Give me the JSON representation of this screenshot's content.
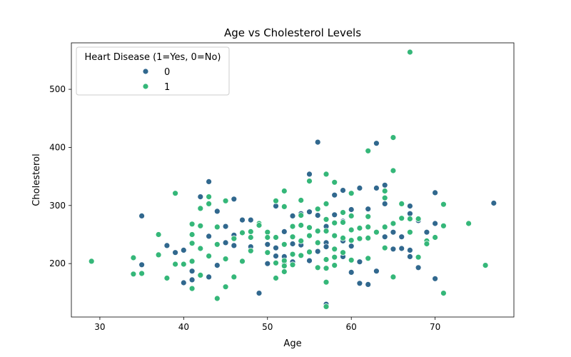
{
  "chart_data": {
    "type": "scatter",
    "title": "Age vs Cholesterol Levels",
    "xlabel": "Age",
    "ylabel": "Cholesterol",
    "xlim": [
      26.6,
      79.4
    ],
    "ylim": [
      108,
      580
    ],
    "xticks": [
      "30",
      "40",
      "50",
      "60",
      "70"
    ],
    "yticks": [
      "200",
      "300",
      "400",
      "500"
    ],
    "grid": false,
    "legend": {
      "title": "Heart Disease (1=Yes, 0=No)",
      "position": "top-left"
    },
    "series": [
      {
        "name": "0",
        "color": "#31688e",
        "points": [
          [
            35,
            282
          ],
          [
            35,
            198
          ],
          [
            38,
            231
          ],
          [
            39,
            219
          ],
          [
            40,
            167
          ],
          [
            40,
            223
          ],
          [
            41,
            172
          ],
          [
            41,
            187
          ],
          [
            42,
            315
          ],
          [
            43,
            341
          ],
          [
            43,
            177
          ],
          [
            43,
            247
          ],
          [
            44,
            290
          ],
          [
            44,
            197
          ],
          [
            45,
            264
          ],
          [
            45,
            236
          ],
          [
            46,
            311
          ],
          [
            46,
            231
          ],
          [
            46,
            249
          ],
          [
            47,
            275
          ],
          [
            48,
            275
          ],
          [
            48,
            229
          ],
          [
            49,
            266
          ],
          [
            49,
            149
          ],
          [
            50,
            200
          ],
          [
            50,
            233
          ],
          [
            51,
            299
          ],
          [
            51,
            227
          ],
          [
            51,
            213
          ],
          [
            52,
            255
          ],
          [
            52,
            199
          ],
          [
            52,
            212
          ],
          [
            53,
            282
          ],
          [
            53,
            203
          ],
          [
            53,
            234
          ],
          [
            54,
            286
          ],
          [
            54,
            232
          ],
          [
            54,
            214
          ],
          [
            55,
            289
          ],
          [
            55,
            354
          ],
          [
            55,
            205
          ],
          [
            56,
            409
          ],
          [
            56,
            283
          ],
          [
            56,
            236
          ],
          [
            56,
            221
          ],
          [
            57,
            303
          ],
          [
            57,
            236
          ],
          [
            57,
            130
          ],
          [
            57,
            229
          ],
          [
            57,
            264
          ],
          [
            58,
            318
          ],
          [
            58,
            284
          ],
          [
            58,
            224
          ],
          [
            58,
            248
          ],
          [
            59,
            326
          ],
          [
            59,
            273
          ],
          [
            59,
            239
          ],
          [
            59,
            212
          ],
          [
            60,
            293
          ],
          [
            60,
            230
          ],
          [
            60,
            258
          ],
          [
            60,
            185
          ],
          [
            61,
            330
          ],
          [
            61,
            243
          ],
          [
            61,
            203
          ],
          [
            61,
            166
          ],
          [
            62,
            294
          ],
          [
            62,
            263
          ],
          [
            62,
            281
          ],
          [
            62,
            164
          ],
          [
            63,
            407
          ],
          [
            63,
            330
          ],
          [
            63,
            254
          ],
          [
            63,
            187
          ],
          [
            64,
            335
          ],
          [
            64,
            303
          ],
          [
            64,
            263
          ],
          [
            64,
            246
          ],
          [
            65,
            254
          ],
          [
            65,
            225
          ],
          [
            66,
            226
          ],
          [
            66,
            246
          ],
          [
            67,
            299
          ],
          [
            67,
            286
          ],
          [
            67,
            212
          ],
          [
            67,
            223
          ],
          [
            68,
            193
          ],
          [
            68,
            274
          ],
          [
            69,
            254
          ],
          [
            70,
            322
          ],
          [
            70,
            269
          ],
          [
            70,
            174
          ],
          [
            77,
            304
          ]
        ]
      },
      {
        "name": "1",
        "color": "#35b779",
        "points": [
          [
            29,
            204
          ],
          [
            34,
            182
          ],
          [
            34,
            210
          ],
          [
            35,
            183
          ],
          [
            37,
            250
          ],
          [
            37,
            215
          ],
          [
            38,
            175
          ],
          [
            39,
            321
          ],
          [
            39,
            199
          ],
          [
            40,
            199
          ],
          [
            41,
            157
          ],
          [
            41,
            268
          ],
          [
            41,
            250
          ],
          [
            41,
            235
          ],
          [
            41,
            204
          ],
          [
            42,
            295
          ],
          [
            42,
            265
          ],
          [
            42,
            226
          ],
          [
            42,
            180
          ],
          [
            43,
            315
          ],
          [
            43,
            303
          ],
          [
            43,
            213
          ],
          [
            44,
            140
          ],
          [
            44,
            233
          ],
          [
            44,
            263
          ],
          [
            45,
            308
          ],
          [
            45,
            160
          ],
          [
            45,
            208
          ],
          [
            46,
            177
          ],
          [
            46,
            243
          ],
          [
            47,
            253
          ],
          [
            47,
            204
          ],
          [
            48,
            255
          ],
          [
            48,
            245
          ],
          [
            48,
            222
          ],
          [
            49,
            269
          ],
          [
            49,
            266
          ],
          [
            50,
            254
          ],
          [
            50,
            245
          ],
          [
            50,
            219
          ],
          [
            51,
            308
          ],
          [
            51,
            245
          ],
          [
            51,
            175
          ],
          [
            51,
            201
          ],
          [
            52,
            325
          ],
          [
            52,
            298
          ],
          [
            52,
            233
          ],
          [
            52,
            205
          ],
          [
            52,
            196
          ],
          [
            52,
            186
          ],
          [
            53,
            264
          ],
          [
            53,
            246
          ],
          [
            53,
            216
          ],
          [
            53,
            198
          ],
          [
            54,
            309
          ],
          [
            54,
            283
          ],
          [
            54,
            266
          ],
          [
            54,
            239
          ],
          [
            54,
            214
          ],
          [
            55,
            342
          ],
          [
            55,
            262
          ],
          [
            55,
            248
          ],
          [
            55,
            220
          ],
          [
            56,
            294
          ],
          [
            56,
            256
          ],
          [
            56,
            236
          ],
          [
            56,
            193
          ],
          [
            57,
            354
          ],
          [
            57,
            303
          ],
          [
            57,
            276
          ],
          [
            57,
            256
          ],
          [
            57,
            207
          ],
          [
            57,
            192
          ],
          [
            57,
            168
          ],
          [
            57,
            126
          ],
          [
            58,
            340
          ],
          [
            58,
            270
          ],
          [
            58,
            248
          ],
          [
            58,
            225
          ],
          [
            58,
            211
          ],
          [
            58,
            197
          ],
          [
            59,
            288
          ],
          [
            59,
            271
          ],
          [
            59,
            244
          ],
          [
            59,
            219
          ],
          [
            60,
            321
          ],
          [
            60,
            282
          ],
          [
            60,
            258
          ],
          [
            60,
            240
          ],
          [
            60,
            206
          ],
          [
            61,
            261
          ],
          [
            61,
            243
          ],
          [
            62,
            394
          ],
          [
            62,
            281
          ],
          [
            62,
            263
          ],
          [
            62,
            244
          ],
          [
            62,
            209
          ],
          [
            63,
            254
          ],
          [
            64,
            325
          ],
          [
            64,
            313
          ],
          [
            64,
            263
          ],
          [
            64,
            227
          ],
          [
            65,
            417
          ],
          [
            65,
            360
          ],
          [
            65,
            269
          ],
          [
            65,
            177
          ],
          [
            66,
            303
          ],
          [
            66,
            278
          ],
          [
            67,
            564
          ],
          [
            67,
            277
          ],
          [
            67,
            254
          ],
          [
            68,
            277
          ],
          [
            68,
            211
          ],
          [
            69,
            239
          ],
          [
            69,
            234
          ],
          [
            70,
            245
          ],
          [
            71,
            302
          ],
          [
            71,
            265
          ],
          [
            71,
            149
          ],
          [
            74,
            269
          ],
          [
            76,
            197
          ]
        ]
      }
    ]
  }
}
